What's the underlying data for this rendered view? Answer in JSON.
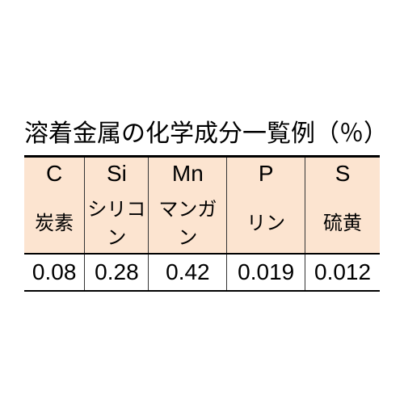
{
  "title": "溶着金属の化学成分一覧例（％）",
  "table": {
    "columns": [
      {
        "symbol": "C",
        "name": "炭素",
        "cls": "col-c"
      },
      {
        "symbol": "Si",
        "name": "シリコン",
        "cls": "col-si"
      },
      {
        "symbol": "Mn",
        "name": "マンガン",
        "cls": "col-mn"
      },
      {
        "symbol": "P",
        "name": "リン",
        "cls": "col-p"
      },
      {
        "symbol": "S",
        "name": "硫黄",
        "cls": "col-s"
      }
    ],
    "values": [
      "0.08",
      "0.28",
      "0.42",
      "0.019",
      "0.012"
    ]
  },
  "colors": {
    "header_bg": "#fce4d0",
    "border": "#000000",
    "text": "#000000",
    "background": "#ffffff"
  }
}
